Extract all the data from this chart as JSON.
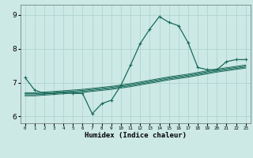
{
  "xlabel": "Humidex (Indice chaleur)",
  "xlim": [
    -0.5,
    23.5
  ],
  "ylim": [
    5.8,
    9.3
  ],
  "yticks": [
    6,
    7,
    8,
    9
  ],
  "bg_color": "#cce9e5",
  "grid_color": "#b0d4cf",
  "line_color": "#1a6b5a",
  "line1_x": [
    0,
    1,
    2,
    3,
    4,
    5,
    6,
    7,
    8,
    9,
    10,
    11,
    12,
    13,
    14,
    15,
    16,
    17,
    18,
    19,
    20,
    21,
    22,
    23
  ],
  "line1_y": [
    7.15,
    6.78,
    6.68,
    6.68,
    6.72,
    6.68,
    6.68,
    6.08,
    6.38,
    6.48,
    6.92,
    7.52,
    8.15,
    8.58,
    8.95,
    8.78,
    8.68,
    8.18,
    7.45,
    7.38,
    7.38,
    7.62,
    7.68,
    7.68
  ],
  "trend_lines": [
    [
      6.7,
      6.7,
      6.72,
      6.74,
      6.76,
      6.78,
      6.8,
      6.83,
      6.86,
      6.89,
      6.93,
      6.97,
      7.02,
      7.07,
      7.12,
      7.17,
      7.21,
      7.25,
      7.3,
      7.35,
      7.4,
      7.44,
      7.48,
      7.52
    ],
    [
      6.67,
      6.67,
      6.69,
      6.71,
      6.73,
      6.75,
      6.77,
      6.8,
      6.83,
      6.86,
      6.9,
      6.94,
      6.99,
      7.04,
      7.09,
      7.14,
      7.18,
      7.22,
      7.27,
      7.32,
      7.37,
      7.41,
      7.45,
      7.49
    ],
    [
      6.64,
      6.64,
      6.66,
      6.68,
      6.7,
      6.72,
      6.74,
      6.77,
      6.8,
      6.83,
      6.87,
      6.91,
      6.96,
      7.01,
      7.06,
      7.11,
      7.15,
      7.19,
      7.24,
      7.29,
      7.34,
      7.38,
      7.42,
      7.46
    ],
    [
      6.61,
      6.61,
      6.63,
      6.65,
      6.67,
      6.69,
      6.71,
      6.74,
      6.77,
      6.8,
      6.84,
      6.88,
      6.93,
      6.98,
      7.03,
      7.08,
      7.12,
      7.16,
      7.21,
      7.26,
      7.31,
      7.35,
      7.39,
      7.43
    ]
  ]
}
